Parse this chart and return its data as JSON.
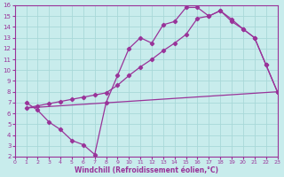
{
  "background_color": "#c8ecec",
  "grid_color": "#a8d8d8",
  "line_color": "#993399",
  "xlim": [
    0,
    23
  ],
  "ylim": [
    2,
    16
  ],
  "xticks": [
    0,
    1,
    2,
    3,
    4,
    5,
    6,
    7,
    8,
    9,
    10,
    11,
    12,
    13,
    14,
    15,
    16,
    17,
    18,
    19,
    20,
    21,
    22,
    23
  ],
  "yticks": [
    2,
    3,
    4,
    5,
    6,
    7,
    8,
    9,
    10,
    11,
    12,
    13,
    14,
    15,
    16
  ],
  "xlabel": "Windchill (Refroidissement éolien,°C)",
  "line1_x": [
    1,
    2,
    3,
    4,
    5,
    6,
    7,
    8,
    9,
    10,
    11,
    12,
    13,
    14,
    15,
    16,
    17,
    18,
    19,
    20,
    21,
    22,
    23
  ],
  "line1_y": [
    7.0,
    6.3,
    5.2,
    4.5,
    3.5,
    3.1,
    2.2,
    7.0,
    9.5,
    12.0,
    13.0,
    12.5,
    14.2,
    14.5,
    15.8,
    15.8,
    15.0,
    15.5,
    14.7,
    13.8,
    13.0,
    10.5,
    8.0
  ],
  "line2_x": [
    1,
    23
  ],
  "line2_y": [
    6.5,
    8.0
  ],
  "line3_x": [
    1,
    2,
    3,
    4,
    5,
    6,
    7,
    8,
    9,
    10,
    11,
    12,
    13,
    14,
    15,
    16,
    17,
    18,
    19,
    20,
    21,
    22,
    23
  ],
  "line3_y": [
    6.5,
    6.7,
    6.9,
    7.1,
    7.3,
    7.5,
    7.7,
    7.9,
    8.6,
    9.5,
    10.3,
    11.0,
    11.8,
    12.5,
    13.3,
    14.8,
    15.0,
    15.5,
    14.5,
    13.8,
    13.0,
    10.5,
    8.0
  ]
}
